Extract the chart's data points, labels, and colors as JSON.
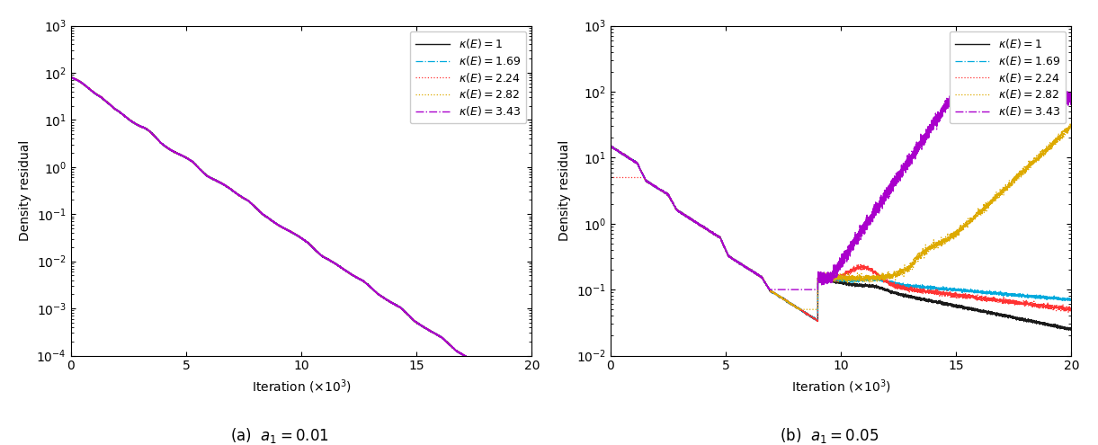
{
  "xlabel": "Iteration ($\\times10^3$)",
  "ylabel": "Density residual",
  "legend_labels": [
    "$\\kappa(E) = 1$",
    "$\\kappa(E) = 1.69$",
    "$\\kappa(E) = 2.24$",
    "$\\kappa(E) = 2.82$",
    "$\\kappa(E) = 3.43$"
  ],
  "colors": [
    "#1a1a1a",
    "#00aadd",
    "#ff3333",
    "#ddaa00",
    "#aa00cc"
  ],
  "linestyles": [
    "solid",
    "dashdot",
    "dotted",
    "dotted",
    "dashdot"
  ],
  "linewidths": [
    1.0,
    0.9,
    0.9,
    0.9,
    1.0
  ],
  "n_iter": 20000,
  "ylim_a": [
    0.0001,
    1000.0
  ],
  "ylim_b": [
    0.01,
    1000.0
  ],
  "xlim": [
    0,
    20
  ],
  "figsize": [
    12.21,
    4.95
  ],
  "dpi": 100,
  "caption_a": "(a)  $a_1 = 0.01$",
  "caption_b": "(b)  $a_1 = 0.05$"
}
